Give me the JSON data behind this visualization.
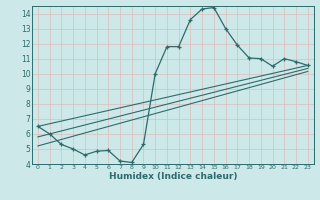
{
  "xlabel": "Humidex (Indice chaleur)",
  "bg_color": "#cde8e8",
  "grid_color": "#f0f0f0",
  "line_color": "#2d6b6b",
  "xlim": [
    -0.5,
    23.5
  ],
  "ylim": [
    4,
    14.5
  ],
  "xticks": [
    0,
    1,
    2,
    3,
    4,
    5,
    6,
    7,
    8,
    9,
    10,
    11,
    12,
    13,
    14,
    15,
    16,
    17,
    18,
    19,
    20,
    21,
    22,
    23
  ],
  "yticks": [
    4,
    5,
    6,
    7,
    8,
    9,
    10,
    11,
    12,
    13,
    14
  ],
  "curve_x": [
    0,
    1,
    2,
    3,
    4,
    5,
    6,
    7,
    8,
    9,
    10,
    11,
    12,
    13,
    14,
    15,
    16,
    17,
    18,
    19,
    20,
    21,
    22,
    23
  ],
  "curve_y": [
    6.5,
    6.0,
    5.3,
    5.0,
    4.6,
    4.85,
    4.9,
    4.2,
    4.1,
    5.3,
    10.0,
    11.8,
    11.8,
    13.6,
    14.3,
    14.4,
    13.0,
    11.9,
    11.05,
    11.0,
    10.5,
    11.0,
    10.8,
    10.55
  ],
  "line1_x": [
    0,
    23
  ],
  "line1_y": [
    6.5,
    10.55
  ],
  "line2_x": [
    0,
    23
  ],
  "line2_y": [
    5.8,
    10.35
  ],
  "line3_x": [
    0,
    23
  ],
  "line3_y": [
    5.2,
    10.15
  ]
}
